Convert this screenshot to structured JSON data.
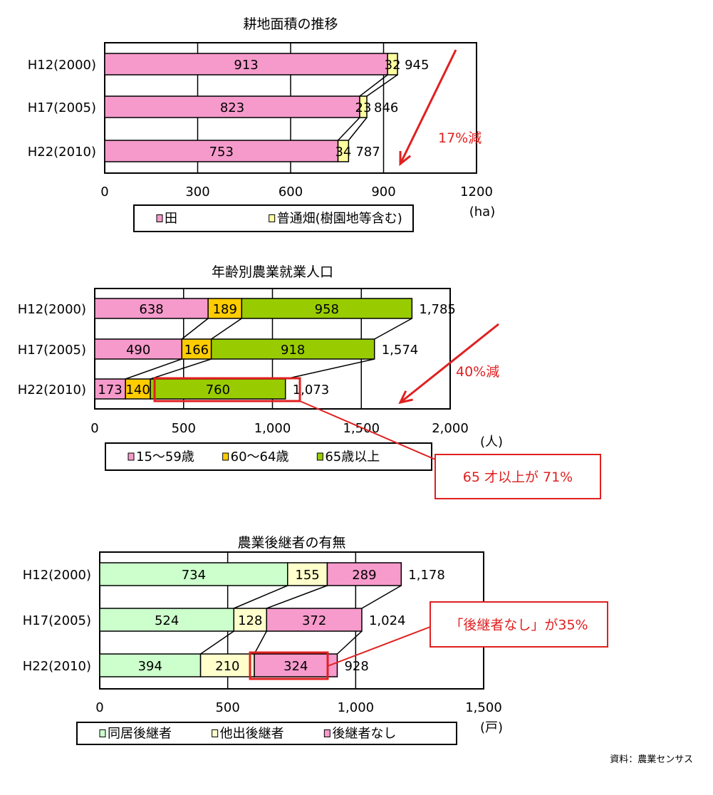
{
  "chart_data": [
    {
      "type": "bar",
      "orientation": "horizontal-stacked",
      "title": "耕地面積の推移",
      "categories": [
        "H12(2000)",
        "H17(2005)",
        "H22(2010)"
      ],
      "series": [
        {
          "name": "田",
          "values": [
            913,
            823,
            753
          ],
          "color": "#f59acb"
        },
        {
          "name": "普通畑(樹園地等含む)",
          "values": [
            32,
            23,
            34
          ],
          "color": "#ffffa0"
        }
      ],
      "totals": [
        "945",
        "846",
        "787"
      ],
      "xlim": [
        0,
        1200
      ],
      "xticks": [
        "0",
        "300",
        "600",
        "900",
        "1200"
      ],
      "unit": "(ha)",
      "grid": true,
      "legend": "bottom",
      "annotation": "17%減"
    },
    {
      "type": "bar",
      "orientation": "horizontal-stacked",
      "title": "年齢別農業就業人口",
      "categories": [
        "H12(2000)",
        "H17(2005)",
        "H22(2010)"
      ],
      "series": [
        {
          "name": "15～59歳",
          "values": [
            638,
            490,
            173
          ],
          "color": "#f59acb"
        },
        {
          "name": "60～64歳",
          "values": [
            189,
            166,
            140
          ],
          "color": "#ffcc00"
        },
        {
          "name": "65歳以上",
          "values": [
            958,
            918,
            760
          ],
          "color": "#99cc00"
        }
      ],
      "totals": [
        "1,785",
        "1,574",
        "1,073"
      ],
      "xlim": [
        0,
        2000
      ],
      "xticks": [
        "0",
        "500",
        "1,000",
        "1,500",
        "2,000"
      ],
      "unit": "(人)",
      "grid": true,
      "legend": "bottom",
      "annotation": "40%減",
      "callout": "65 才以上が 71%"
    },
    {
      "type": "bar",
      "orientation": "horizontal-stacked",
      "title": "農業後継者の有無",
      "categories": [
        "H12(2000)",
        "H17(2005)",
        "H22(2010)"
      ],
      "series": [
        {
          "name": "同居後継者",
          "values": [
            734,
            524,
            394
          ],
          "color": "#ccffcc"
        },
        {
          "name": "他出後継者",
          "values": [
            155,
            128,
            210
          ],
          "color": "#ffffcc"
        },
        {
          "name": "後継者なし",
          "values": [
            289,
            372,
            324
          ],
          "color": "#f79acc"
        }
      ],
      "totals": [
        "1,178",
        "1,024",
        "928"
      ],
      "xlim": [
        0,
        1500
      ],
      "xticks": [
        "0",
        "500",
        "1,000",
        "1,500"
      ],
      "unit": "(戸)",
      "grid": true,
      "legend": "bottom",
      "callout": "「後継者なし」が35%"
    }
  ],
  "source": "資料：農業センサス"
}
